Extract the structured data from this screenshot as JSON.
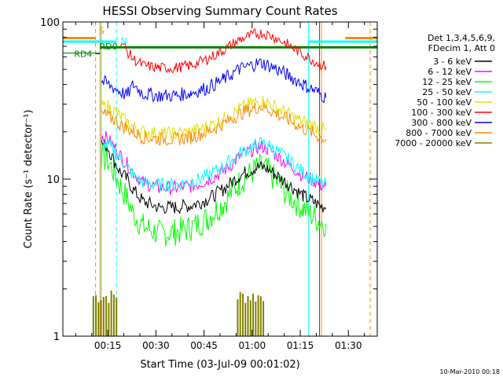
{
  "chart_data": {
    "type": "line",
    "title": "HESSI Observing Summary Count Rates",
    "xlabel": "Start Time (03-Jul-09 00:01:02)",
    "ylabel": "Count Rate (s⁻¹ detector⁻¹)",
    "x_unit": "minutes after 00:01:02 UT",
    "xlim": [
      0,
      98
    ],
    "x_ticks": [
      {
        "value": 14,
        "label": "00:15"
      },
      {
        "value": 29,
        "label": "00:30"
      },
      {
        "value": 44,
        "label": "00:45"
      },
      {
        "value": 59,
        "label": "01:00"
      },
      {
        "value": 74,
        "label": "01:15"
      },
      {
        "value": 89,
        "label": "01:30"
      }
    ],
    "yscale": "log",
    "ylim": [
      1,
      100
    ],
    "y_ticks": [
      {
        "value": 1,
        "label": "1"
      },
      {
        "value": 10,
        "label": "10"
      },
      {
        "value": 100,
        "label": "100"
      }
    ],
    "grid": false,
    "legend": {
      "placement": "right",
      "header": [
        "Det 1,3,4,5,6,9,",
        "FDecim 1, Att 0"
      ]
    },
    "x": [
      10,
      12,
      14,
      16,
      18,
      20,
      22,
      25,
      30,
      35,
      40,
      45,
      50,
      55,
      60,
      62,
      64,
      66,
      70,
      75,
      78,
      80,
      82
    ],
    "series": [
      {
        "name": "3 - 6 keV",
        "color": "#000000",
        "values": [
          null,
          17,
          16,
          13,
          11,
          10,
          8.5,
          7.2,
          6.6,
          6.6,
          6.8,
          7.4,
          8.6,
          10.5,
          11.8,
          12,
          11.5,
          10.8,
          9.4,
          7.8,
          7.2,
          6.8,
          6.6
        ]
      },
      {
        "name": "6 - 12 keV",
        "color": "#ff00ff",
        "values": [
          null,
          19,
          18,
          16,
          14,
          12.5,
          11,
          9.5,
          8.8,
          8.8,
          9.0,
          9.8,
          11.2,
          13.8,
          15.8,
          16.2,
          15.5,
          14.5,
          12.5,
          10.5,
          9.8,
          9.2,
          9.0
        ]
      },
      {
        "name": "12 - 25 keV",
        "color": "#00ff00",
        "values": [
          null,
          14,
          13,
          11,
          9,
          7.5,
          6.0,
          5.0,
          4.5,
          4.6,
          4.9,
          5.6,
          7.0,
          9.5,
          11.5,
          12,
          11.2,
          10,
          8,
          6.5,
          5.8,
          5.4,
          5.2
        ]
      },
      {
        "name": "25 - 50 keV",
        "color": "#00ffff",
        "values": [
          null,
          17,
          16.5,
          15,
          13.5,
          12,
          10.5,
          9.5,
          9.2,
          9.2,
          9.6,
          10.5,
          12,
          14.5,
          16.5,
          17,
          16.4,
          15.5,
          13.5,
          11,
          10,
          9.5,
          9.2
        ]
      },
      {
        "name": "50 - 100 keV",
        "color": "#e0e000",
        "values": [
          null,
          29,
          29,
          27,
          25,
          23,
          21.5,
          20,
          19.5,
          19.5,
          20,
          21.5,
          24,
          28,
          31,
          31.5,
          30.5,
          29,
          26,
          23,
          22,
          21,
          20.5
        ]
      },
      {
        "name": "100 - 300 keV",
        "color": "#ff0000",
        "values": [
          null,
          null,
          null,
          null,
          76,
          65,
          58,
          53,
          51,
          51,
          53,
          58,
          66,
          77,
          84,
          85,
          83,
          80,
          72,
          62,
          57,
          54,
          52
        ]
      },
      {
        "name": "300 - 800 keV",
        "color": "#0000ff",
        "values": [
          null,
          42,
          40,
          38,
          36,
          34,
          40,
          35,
          34,
          34,
          35.5,
          38,
          43,
          50,
          54,
          55,
          53,
          51,
          46,
          40,
          37,
          35,
          33
        ]
      },
      {
        "name": "800 - 7000 keV",
        "color": "#ff8800",
        "values": [
          null,
          26,
          25,
          24,
          22,
          21,
          20,
          18.5,
          18,
          18,
          18.5,
          20,
          22.5,
          26,
          28.5,
          29,
          28,
          26.5,
          24,
          21,
          19.5,
          18.5,
          18
        ]
      },
      {
        "name": "7000 - 20000 keV",
        "color": "#808000",
        "values": [
          1.9,
          1.9,
          1.9,
          1.9,
          null,
          null,
          null,
          null,
          null,
          null,
          null,
          null,
          null,
          1.9,
          1.9,
          null,
          null,
          null,
          null,
          null,
          null,
          null,
          null
        ]
      }
    ],
    "annotations": [
      {
        "label": "S",
        "color": "#ff8800"
      },
      {
        "label": "N",
        "color": "#00ffff"
      },
      {
        "label": "RD0",
        "color": "#008000"
      },
      {
        "label": "RD4",
        "color": "#008000"
      }
    ],
    "timestamp": "10-Mar-2010 00:18"
  }
}
